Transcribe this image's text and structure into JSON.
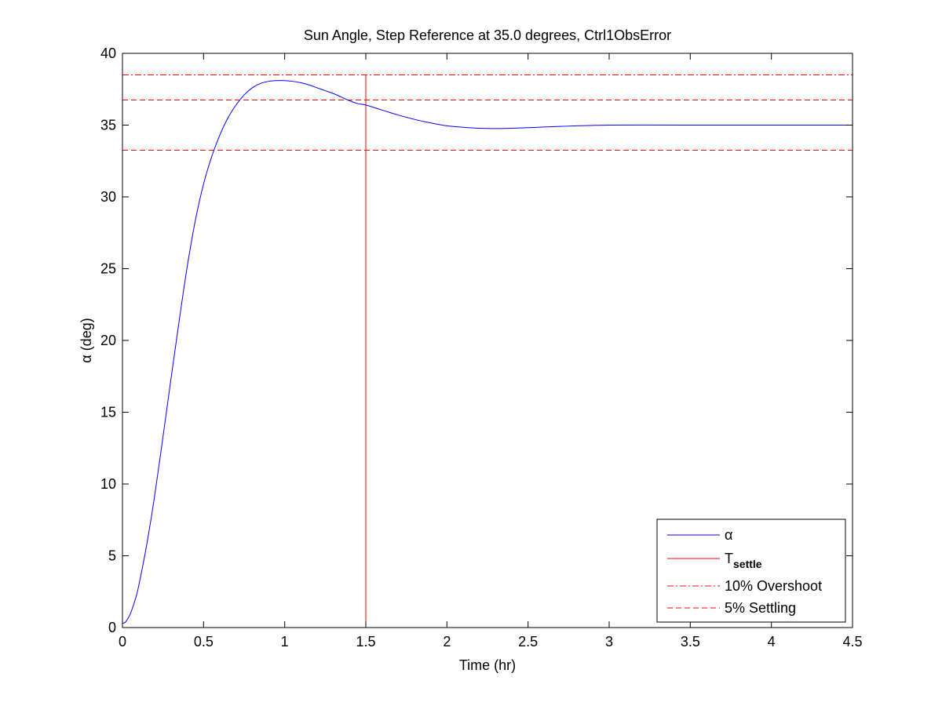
{
  "chart_data": {
    "type": "line",
    "title": "Sun Angle, Step Reference at 35.0 degrees, Ctrl1ObsError",
    "xlabel": "Time (hr)",
    "ylabel": "α (deg)",
    "xlim": [
      0,
      4.5
    ],
    "ylim": [
      0,
      40
    ],
    "xticks": [
      0,
      0.5,
      1,
      1.5,
      2,
      2.5,
      3,
      3.5,
      4,
      4.5
    ],
    "xtick_labels": [
      "0",
      "0.5",
      "1",
      "1.5",
      "2",
      "2.5",
      "3",
      "3.5",
      "4",
      "4.5"
    ],
    "yticks": [
      0,
      5,
      10,
      15,
      20,
      25,
      30,
      35,
      40
    ],
    "ytick_labels": [
      "0",
      "5",
      "10",
      "15",
      "20",
      "25",
      "30",
      "35",
      "40"
    ],
    "grid": false,
    "legend_position": "bottom-right",
    "legend": [
      {
        "label": "α",
        "sub": "",
        "color": "#0000ff",
        "style": "solid"
      },
      {
        "label": "T",
        "sub": "settle",
        "color": "#ff0000",
        "style": "solid"
      },
      {
        "label": "10% Overshoot",
        "sub": "",
        "color": "#ff0000",
        "style": "dashdot"
      },
      {
        "label": "5% Settling",
        "sub": "",
        "color": "#ff0000",
        "style": "dashed"
      }
    ],
    "series": [
      {
        "color": "#0000ff",
        "x": [
          0,
          0.02,
          0.05,
          0.08,
          0.1,
          0.15,
          0.2,
          0.25,
          0.3,
          0.35,
          0.4,
          0.45,
          0.5,
          0.55,
          0.6,
          0.65,
          0.7,
          0.75,
          0.8,
          0.85,
          0.9,
          0.95,
          1.0,
          1.05,
          1.1,
          1.15,
          1.2,
          1.25,
          1.3,
          1.35,
          1.4,
          1.45,
          1.5,
          1.6,
          1.7,
          1.8,
          1.9,
          2.0,
          2.1,
          2.2,
          2.3,
          2.4,
          2.5,
          2.6,
          2.7,
          2.8,
          2.9,
          3.0,
          3.2,
          3.5,
          4.0,
          4.5
        ],
        "y": [
          0.3,
          0.4,
          1.0,
          2.0,
          2.9,
          5.8,
          9.3,
          13.3,
          17.4,
          21.4,
          25.2,
          28.4,
          30.9,
          32.8,
          34.3,
          35.5,
          36.4,
          37.1,
          37.6,
          37.9,
          38.05,
          38.1,
          38.1,
          38.05,
          37.95,
          37.8,
          37.6,
          37.4,
          37.2,
          36.95,
          36.7,
          36.5,
          36.4,
          36.05,
          35.7,
          35.4,
          35.15,
          34.95,
          34.85,
          34.78,
          34.76,
          34.78,
          34.82,
          34.87,
          34.91,
          34.95,
          34.98,
          35.0,
          35.01,
          35.0,
          35.0,
          35.0
        ]
      }
    ],
    "t_settle": {
      "x": 1.5,
      "y_from": 0,
      "y_to": 38.5,
      "color": "#ff0000"
    },
    "overshoot_line": {
      "y": 38.5,
      "color": "#ff0000"
    },
    "settling_lines": {
      "y": [
        36.75,
        33.25
      ],
      "color": "#ff0000"
    }
  }
}
